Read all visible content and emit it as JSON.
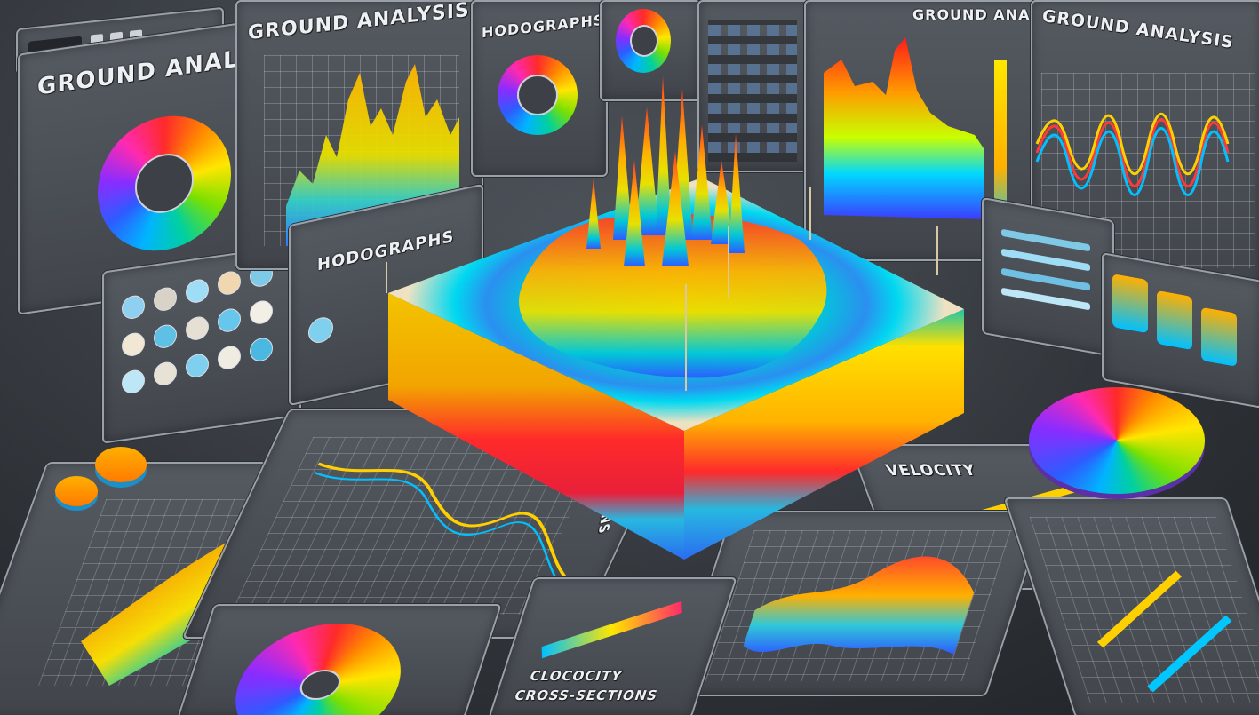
{
  "labels": {
    "ground_analysis_left": "GROUND ANALYSIS",
    "ground_analysis_top": "GROUND ANALYSIS",
    "ground_analysis_right": "GROUND ANALYSIS",
    "hodographs_top": "HODOGRAPHS",
    "hodographs_mid": "HODOGRAPHS",
    "velocity": "VELOCITY",
    "sections": "SECTIONS",
    "cross_sections_line1": "CLOCOCITY",
    "cross_sections_line2": "CROSS-SECTIONS"
  },
  "icons": [
    "color-wheel-icon",
    "donut-chart-icon",
    "spike-chart-icon",
    "waveform-icon",
    "terrain-block-icon"
  ],
  "colors": {
    "background": "#3c4046",
    "panel_border": "#9aa0a8",
    "spectrum": [
      "#ff2a2a",
      "#ff8a00",
      "#ffe600",
      "#00d0a0",
      "#00b4ff",
      "#2e5bff"
    ]
  }
}
